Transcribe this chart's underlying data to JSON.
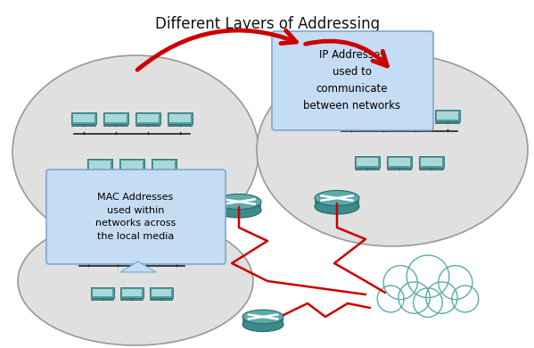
{
  "title": "Different Layers of Addressing",
  "title_fontsize": 12,
  "background_color": "#ffffff",
  "ellipse_facecolor": "#e0e0e0",
  "ellipse_edgecolor": "#999999",
  "computer_body_color": "#4d9ea0",
  "computer_screen_color": "#a8d8da",
  "router_top_color": "#5aabaa",
  "router_body_color": "#3d8a8c",
  "cloud_facecolor": "#ffffff",
  "cloud_edgecolor": "#5aabaa",
  "arrow_color": "#cc0000",
  "ip_box_facecolor": "#c5dcf5",
  "ip_box_edgecolor": "#7aaad0",
  "mac_box_facecolor": "#c5dcf5",
  "mac_box_edgecolor": "#7aaad0",
  "ip_text": "IP Addresses\nused to\ncommunicate\nbetween networks",
  "mac_text": "MAC Addresses\nused within\nnetworks across\nthe local media",
  "bus_color": "#222222",
  "wire_color": "#222222",
  "red_line_color": "#cc0000"
}
